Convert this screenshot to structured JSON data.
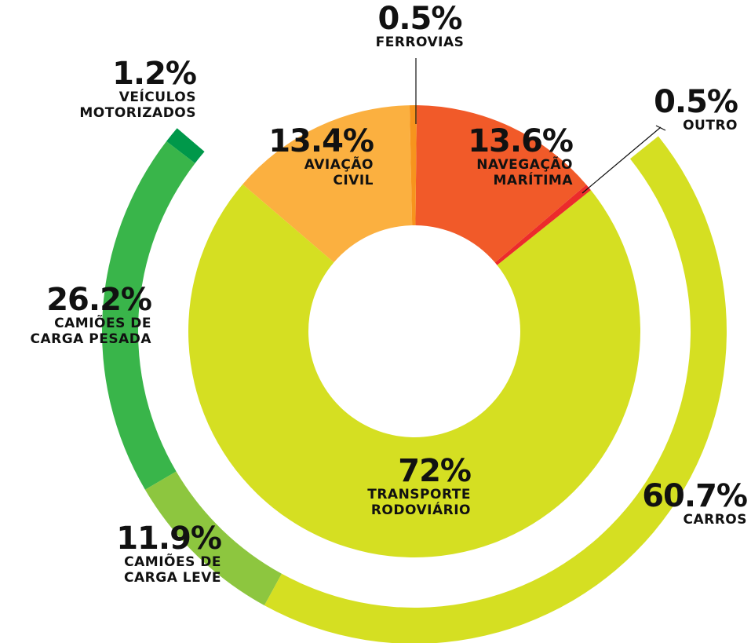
{
  "chart_data": [
    {
      "type": "donut",
      "categories": [
        "FERROVIAS",
        "NAVEGAÇÃO\nMARÍTIMA",
        "OUTRO",
        "TRANSPORTE\nRODOVIÁRIO",
        "AVIAÇÃO\nCIVIL"
      ],
      "values": [
        0.5,
        13.6,
        0.5,
        72,
        13.4
      ],
      "value_labels": [
        "0.5%",
        "13.6%",
        "0.5%",
        "72%",
        "13.4%"
      ],
      "colors": [
        "#f7941d",
        "#f15a29",
        "#ec2b2b",
        "#d5df22",
        "#fbb040"
      ]
    },
    {
      "type": "donut",
      "categories": [
        "CARROS",
        "CAMIÕES DE\nCARGA LEVE",
        "CAMIÕES DE\nCARGA PESADA",
        "VEÍCULOS\nMOTORIZADOS"
      ],
      "values": [
        60.7,
        11.9,
        26.2,
        1.2
      ],
      "value_labels": [
        "60.7%",
        "11.9%",
        "26.2%",
        "1.2%"
      ],
      "colors": [
        "#d5df22",
        "#8dc63f",
        "#39b54a",
        "#00984a"
      ]
    }
  ]
}
